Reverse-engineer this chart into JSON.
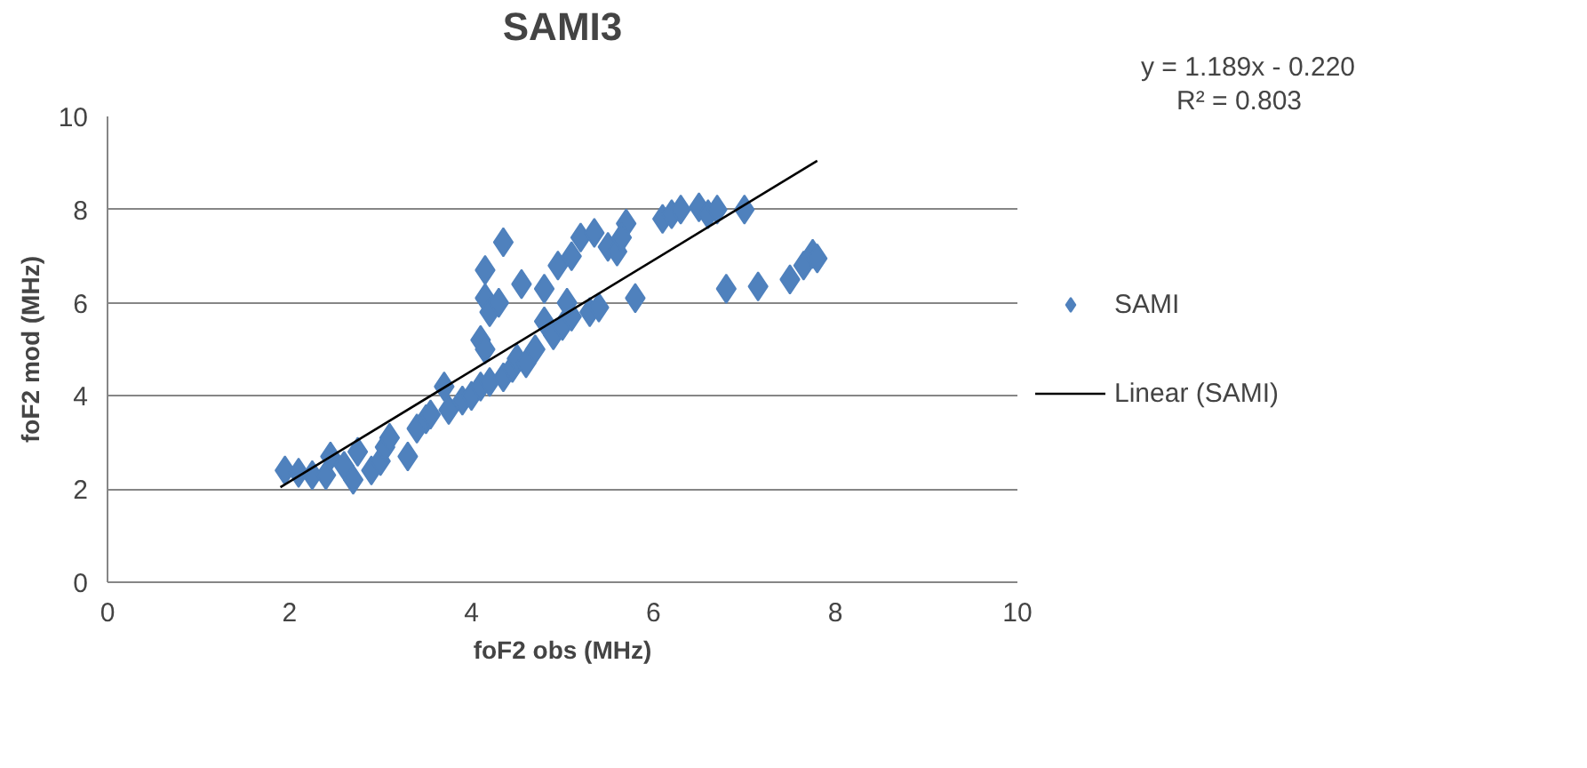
{
  "chart_data": {
    "type": "scatter",
    "title": "SAMI3",
    "xlabel": "foF2 obs (MHz)",
    "ylabel": "foF2 mod (MHz)",
    "xlim": [
      0,
      10
    ],
    "ylim": [
      0,
      10
    ],
    "xticks": [
      0,
      2,
      4,
      6,
      8,
      10
    ],
    "yticks": [
      0,
      2,
      4,
      6,
      8,
      10
    ],
    "grid": "y",
    "legend": "right",
    "annotations": [
      "y = 1.189x - 0.220",
      "R² = 0.803"
    ],
    "series": [
      {
        "name": "SAMI",
        "color": "#4f81bd",
        "marker": "diamond",
        "x": [
          1.95,
          2.1,
          2.25,
          2.4,
          2.45,
          2.6,
          2.7,
          2.75,
          2.9,
          3.0,
          3.05,
          3.1,
          3.3,
          3.4,
          3.5,
          3.55,
          3.7,
          3.75,
          3.9,
          4.0,
          4.1,
          4.2,
          4.35,
          4.45,
          4.5,
          4.6,
          4.7,
          4.8,
          4.9,
          5.0,
          5.1,
          5.3,
          5.4,
          4.15,
          4.35,
          4.15,
          4.2,
          4.3,
          4.1,
          4.15,
          4.55,
          4.8,
          4.95,
          5.1,
          5.2,
          5.35,
          5.5,
          5.6,
          5.7,
          5.65,
          5.8,
          6.1,
          6.2,
          6.3,
          6.5,
          6.6,
          6.7,
          7.0,
          6.8,
          7.15,
          7.5,
          7.65,
          7.75,
          7.8,
          5.05
        ],
        "values": [
          2.4,
          2.35,
          2.3,
          2.3,
          2.7,
          2.5,
          2.2,
          2.8,
          2.4,
          2.6,
          2.9,
          3.1,
          2.7,
          3.3,
          3.5,
          3.6,
          4.2,
          3.7,
          3.9,
          4.0,
          4.2,
          4.3,
          4.4,
          4.6,
          4.8,
          4.7,
          5.0,
          5.6,
          5.3,
          5.5,
          5.7,
          5.8,
          5.9,
          6.7,
          7.3,
          6.1,
          5.8,
          6.0,
          5.2,
          5.0,
          6.4,
          6.3,
          6.8,
          7.0,
          7.4,
          7.5,
          7.2,
          7.1,
          7.7,
          7.4,
          6.1,
          7.8,
          7.9,
          8.0,
          8.05,
          7.9,
          8.0,
          8.0,
          6.3,
          6.35,
          6.5,
          6.8,
          7.05,
          6.95,
          6.0
        ]
      },
      {
        "name": "Linear (SAMI)",
        "type": "line",
        "color": "#000000",
        "marker": "none",
        "x": [
          1.9,
          7.8
        ],
        "values": [
          2.04,
          9.05
        ]
      }
    ]
  }
}
